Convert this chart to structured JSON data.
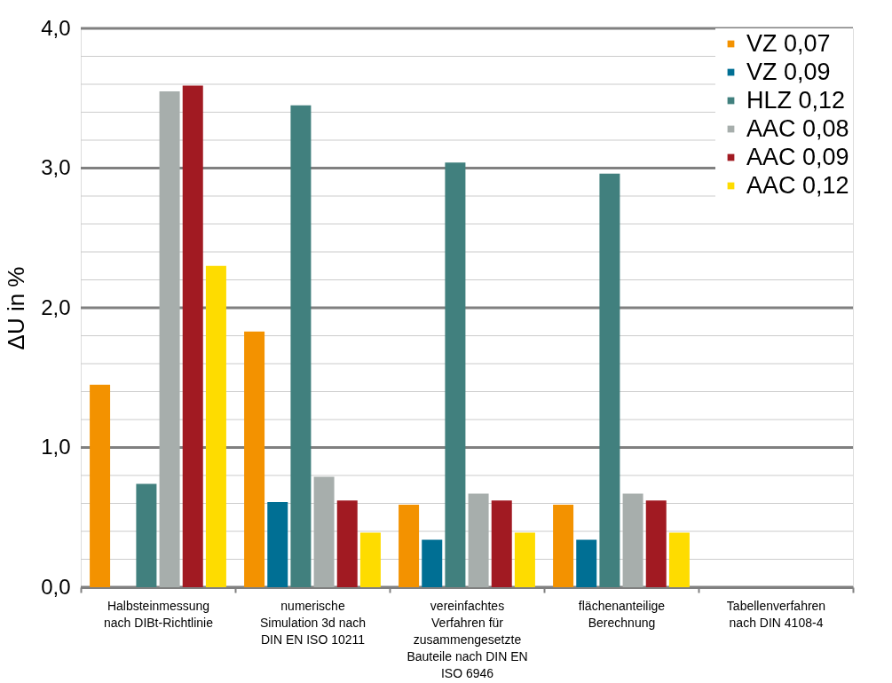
{
  "chart_data": {
    "type": "bar",
    "ylabel": "ΔU in %",
    "categories": [
      "Halbsteinmessung nach DIBt-Richtlinie",
      "numerische Simulation 3d nach DIN EN ISO 10211",
      "vereinfachtes Verfahren für zusammengesetzte Bauteile nach DIN EN ISO 6946",
      "flächenanteilige Berechnung",
      "Tabellenverfahren nach DIN 4108-4"
    ],
    "series": [
      {
        "name": "VZ 0,07",
        "color": "#f39200",
        "values": [
          1.45,
          1.83,
          0.59,
          0.59,
          null
        ]
      },
      {
        "name": "VZ 0,09",
        "color": "#006f94",
        "values": [
          null,
          0.61,
          0.34,
          0.34,
          null
        ]
      },
      {
        "name": "HLZ 0,12",
        "color": "#41807e",
        "values": [
          0.74,
          3.45,
          3.04,
          2.96,
          null
        ]
      },
      {
        "name": "AAC 0,08",
        "color": "#a7aeac",
        "values": [
          3.55,
          0.79,
          0.67,
          0.67,
          null
        ]
      },
      {
        "name": "AAC 0,09",
        "color": "#a11a22",
        "values": [
          3.59,
          0.62,
          0.62,
          0.62,
          null
        ]
      },
      {
        "name": "AAC 0,12",
        "color": "#fedc00",
        "values": [
          2.3,
          0.39,
          0.39,
          0.39,
          null
        ]
      }
    ],
    "ylim": [
      0,
      4
    ],
    "yticks": [
      {
        "value": 0,
        "label": "0,0"
      },
      {
        "value": 0.2,
        "label": null
      },
      {
        "value": 0.4,
        "label": null
      },
      {
        "value": 0.6,
        "label": null
      },
      {
        "value": 0.8,
        "label": null
      },
      {
        "value": 1,
        "label": "1,0"
      },
      {
        "value": 1.2,
        "label": null
      },
      {
        "value": 1.4,
        "label": null
      },
      {
        "value": 1.6,
        "label": null
      },
      {
        "value": 1.8,
        "label": null
      },
      {
        "value": 2,
        "label": "2,0"
      },
      {
        "value": 2.2,
        "label": null
      },
      {
        "value": 2.4,
        "label": null
      },
      {
        "value": 2.6,
        "label": null
      },
      {
        "value": 2.8,
        "label": null
      },
      {
        "value": 3,
        "label": "3,0"
      },
      {
        "value": 3.2,
        "label": null
      },
      {
        "value": 3.4,
        "label": null
      },
      {
        "value": 3.6,
        "label": null
      },
      {
        "value": 3.8,
        "label": null
      },
      {
        "value": 4,
        "label": "4,0"
      }
    ],
    "grid": true,
    "legend": "top right"
  }
}
